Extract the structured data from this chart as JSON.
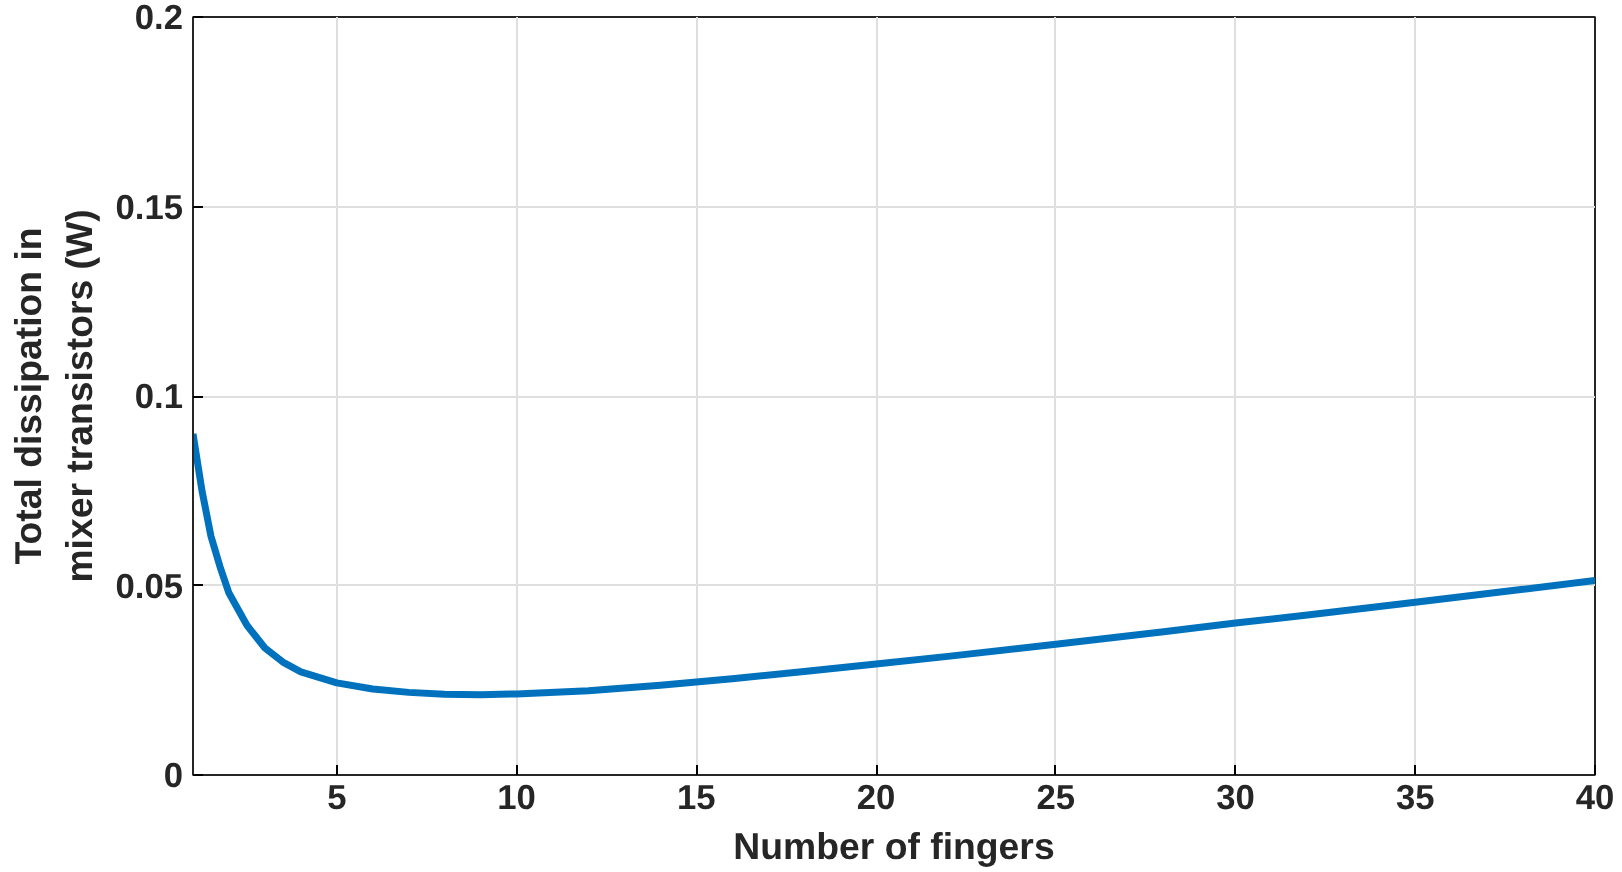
{
  "chart_data": {
    "type": "line",
    "xlabel": "Number of fingers",
    "ylabel": "Total dissipation in\nmixer transistors (W)",
    "x": [
      1,
      1.25,
      1.5,
      1.75,
      2,
      2.5,
      3,
      3.5,
      4,
      5,
      6,
      7,
      8,
      9,
      10,
      12,
      14,
      16,
      18,
      20,
      22,
      25,
      28,
      30,
      32,
      35,
      38,
      40
    ],
    "series": [
      {
        "color": "#0072bd",
        "values": [
          0.09,
          0.075,
          0.063,
          0.055,
          0.048,
          0.0395,
          0.0335,
          0.0298,
          0.0272,
          0.0243,
          0.0227,
          0.0218,
          0.0213,
          0.0212,
          0.0214,
          0.0222,
          0.0237,
          0.0254,
          0.0273,
          0.0293,
          0.0313,
          0.0345,
          0.0378,
          0.0401,
          0.0422,
          0.0456,
          0.049,
          0.0513
        ]
      }
    ],
    "xlim": [
      1,
      40
    ],
    "xticks": [
      5,
      10,
      15,
      20,
      25,
      30,
      35,
      40
    ],
    "ylim": [
      0,
      0.2
    ],
    "yticks": [
      0,
      0.05,
      0.1,
      0.15,
      0.2
    ],
    "grid": true,
    "marker": "none",
    "line_style": "solid"
  }
}
